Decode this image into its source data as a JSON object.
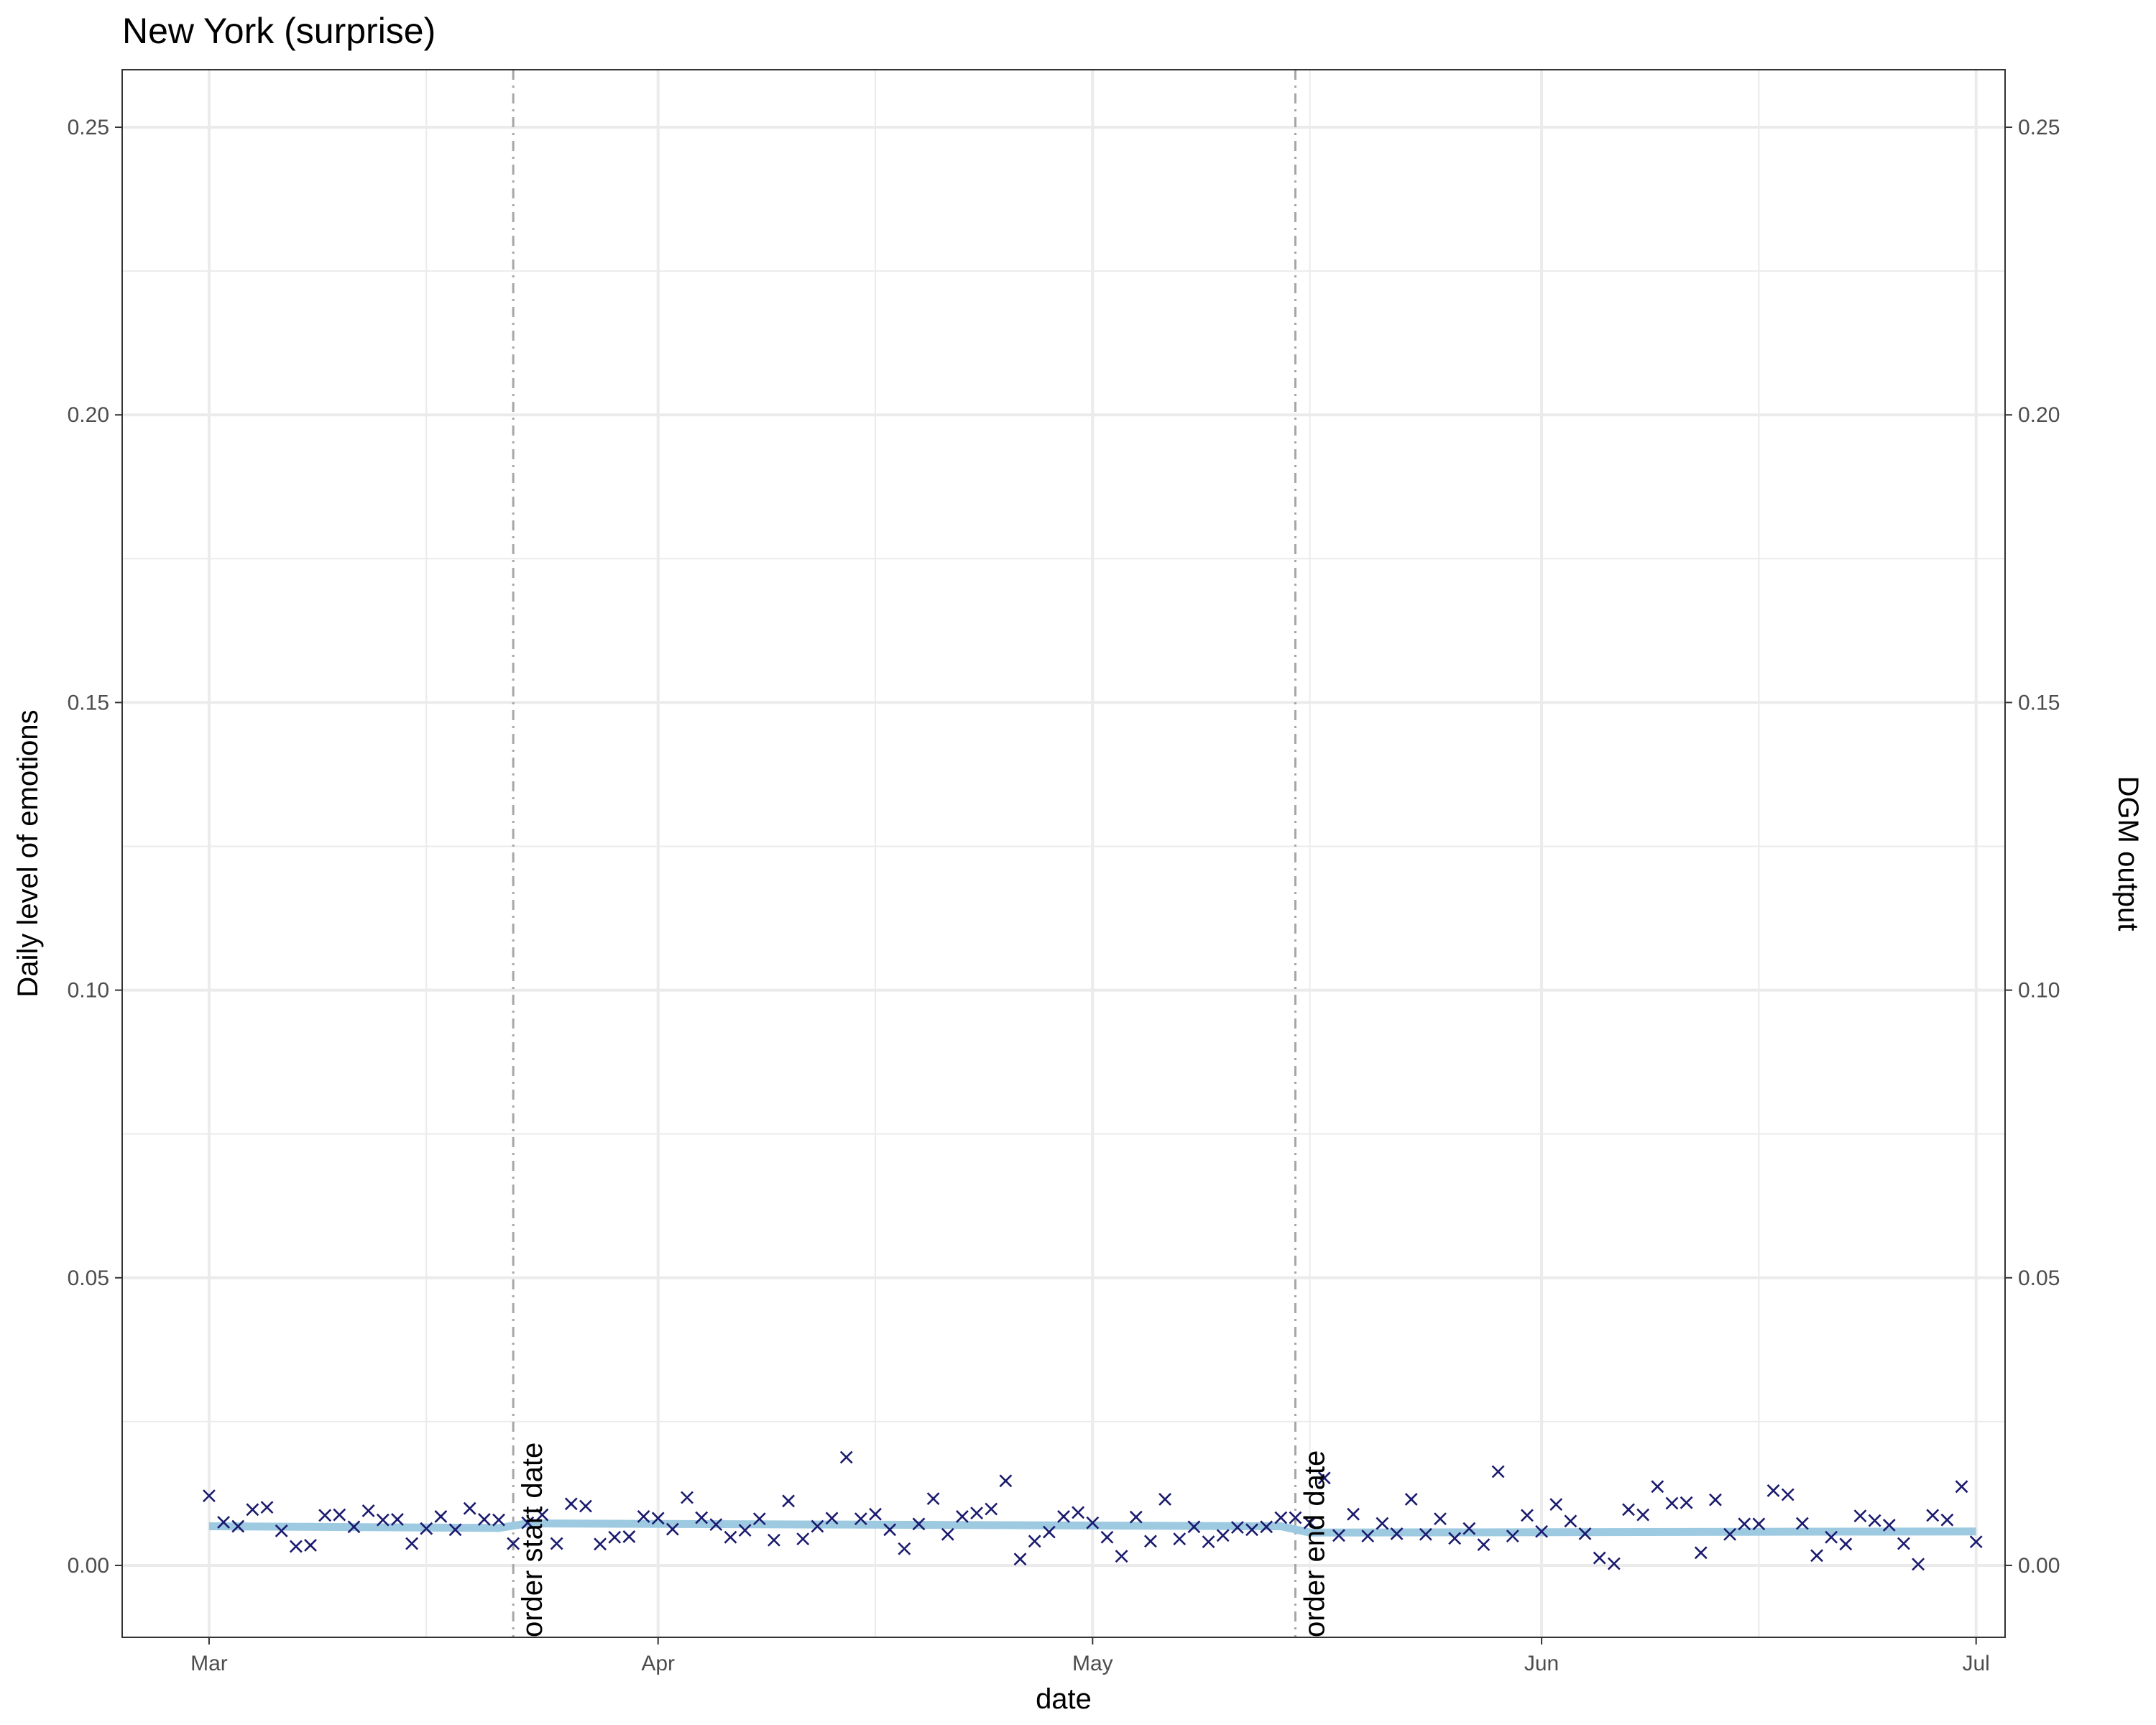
{
  "chart_data": {
    "type": "scatter",
    "title": "New York (surprise)",
    "xlabel": "date",
    "ylabel": "Daily level of emotions",
    "ylabel_right": "DGM output",
    "x_range": [
      "2020-02-24",
      "2020-07-03"
    ],
    "ylim": [
      -0.0125,
      0.26
    ],
    "y_ticks": [
      0.0,
      0.05,
      0.1,
      0.15,
      0.2,
      0.25
    ],
    "y_tick_labels": [
      "0.00",
      "0.05",
      "0.10",
      "0.15",
      "0.20",
      "0.25"
    ],
    "y_minor_ticks": [
      0.025,
      0.075,
      0.125,
      0.175,
      0.225
    ],
    "x_ticks": [
      "2020-03-01",
      "2020-04-01",
      "2020-05-01",
      "2020-06-01",
      "2020-07-01"
    ],
    "x_tick_labels": [
      "Mar",
      "Apr",
      "May",
      "Jun",
      "Jul"
    ],
    "x_minor_ticks": [
      "2020-03-16",
      "2020-04-16",
      "2020-05-16",
      "2020-06-16"
    ],
    "grid": true,
    "colors": {
      "points": "#1a1a6e",
      "fit_line": "#9ecae1",
      "vline": "#a6a6a6",
      "grid": "#ebebeb",
      "panel_border": "#333333"
    },
    "annotations": [
      {
        "date": "2020-03-22",
        "label": "order start date"
      },
      {
        "date": "2020-05-15",
        "label": "order end date"
      }
    ],
    "fit_line": {
      "name": "DGM output",
      "x": [
        "2020-03-01",
        "2020-03-21",
        "2020-03-23",
        "2020-05-14",
        "2020-05-16",
        "2020-07-01"
      ],
      "y": [
        0.0068,
        0.0065,
        0.0073,
        0.0068,
        0.0057,
        0.0059
      ]
    },
    "points": {
      "x": [
        "2020-03-01",
        "2020-03-02",
        "2020-03-03",
        "2020-03-04",
        "2020-03-05",
        "2020-03-06",
        "2020-03-07",
        "2020-03-08",
        "2020-03-09",
        "2020-03-10",
        "2020-03-11",
        "2020-03-12",
        "2020-03-13",
        "2020-03-14",
        "2020-03-15",
        "2020-03-16",
        "2020-03-17",
        "2020-03-18",
        "2020-03-19",
        "2020-03-20",
        "2020-03-21",
        "2020-03-22",
        "2020-03-23",
        "2020-03-24",
        "2020-03-25",
        "2020-03-26",
        "2020-03-27",
        "2020-03-28",
        "2020-03-29",
        "2020-03-30",
        "2020-03-31",
        "2020-04-01",
        "2020-04-02",
        "2020-04-03",
        "2020-04-04",
        "2020-04-05",
        "2020-04-06",
        "2020-04-07",
        "2020-04-08",
        "2020-04-09",
        "2020-04-10",
        "2020-04-11",
        "2020-04-12",
        "2020-04-13",
        "2020-04-14",
        "2020-04-15",
        "2020-04-16",
        "2020-04-17",
        "2020-04-18",
        "2020-04-19",
        "2020-04-20",
        "2020-04-21",
        "2020-04-22",
        "2020-04-23",
        "2020-04-24",
        "2020-04-25",
        "2020-04-26",
        "2020-04-27",
        "2020-04-28",
        "2020-04-29",
        "2020-04-30",
        "2020-05-01",
        "2020-05-02",
        "2020-05-03",
        "2020-05-04",
        "2020-05-05",
        "2020-05-06",
        "2020-05-07",
        "2020-05-08",
        "2020-05-09",
        "2020-05-10",
        "2020-05-11",
        "2020-05-12",
        "2020-05-13",
        "2020-05-14",
        "2020-05-15",
        "2020-05-16",
        "2020-05-17",
        "2020-05-18",
        "2020-05-19",
        "2020-05-20",
        "2020-05-21",
        "2020-05-22",
        "2020-05-23",
        "2020-05-24",
        "2020-05-25",
        "2020-05-26",
        "2020-05-27",
        "2020-05-28",
        "2020-05-29",
        "2020-05-30",
        "2020-05-31",
        "2020-06-01",
        "2020-06-02",
        "2020-06-03",
        "2020-06-04",
        "2020-06-05",
        "2020-06-06",
        "2020-06-07",
        "2020-06-08",
        "2020-06-09",
        "2020-06-10",
        "2020-06-11",
        "2020-06-12",
        "2020-06-13",
        "2020-06-14",
        "2020-06-15",
        "2020-06-16",
        "2020-06-17",
        "2020-06-18",
        "2020-06-19",
        "2020-06-20",
        "2020-06-21",
        "2020-06-22",
        "2020-06-23",
        "2020-06-24",
        "2020-06-25",
        "2020-06-26",
        "2020-06-27",
        "2020-06-28",
        "2020-06-29",
        "2020-06-30",
        "2020-07-01"
      ],
      "y": [
        0.0121,
        0.0075,
        0.0068,
        0.0097,
        0.0101,
        0.006,
        0.0033,
        0.0035,
        0.0087,
        0.0088,
        0.0067,
        0.0095,
        0.0079,
        0.008,
        0.0038,
        0.0064,
        0.0085,
        0.0062,
        0.0099,
        0.008,
        0.0079,
        0.0038,
        0.0074,
        0.0088,
        0.0038,
        0.0107,
        0.0103,
        0.0037,
        0.0049,
        0.005,
        0.0085,
        0.0082,
        0.0063,
        0.0118,
        0.0083,
        0.0071,
        0.0049,
        0.0061,
        0.0081,
        0.0044,
        0.0112,
        0.0046,
        0.0068,
        0.0082,
        0.0188,
        0.0081,
        0.0089,
        0.0062,
        0.0029,
        0.0072,
        0.0116,
        0.0054,
        0.0085,
        0.0091,
        0.0098,
        0.0147,
        0.0011,
        0.0042,
        0.0058,
        0.0085,
        0.0092,
        0.0074,
        0.0049,
        0.0016,
        0.0084,
        0.0042,
        0.0115,
        0.0046,
        0.0067,
        0.0041,
        0.0052,
        0.0066,
        0.0062,
        0.0067,
        0.0083,
        0.0083,
        0.0074,
        0.0152,
        0.0052,
        0.0089,
        0.0051,
        0.0073,
        0.0055,
        0.0115,
        0.0054,
        0.0081,
        0.0047,
        0.0064,
        0.0036,
        0.0163,
        0.0051,
        0.0087,
        0.0059,
        0.0106,
        0.0077,
        0.0055,
        0.0013,
        0.0003,
        0.0097,
        0.0088,
        0.0137,
        0.0108,
        0.0109,
        0.0022,
        0.0114,
        0.0054,
        0.0072,
        0.0072,
        0.013,
        0.0123,
        0.0073,
        0.0017,
        0.0049,
        0.0037,
        0.0086,
        0.0078,
        0.007,
        0.0038,
        0.0002,
        0.0087,
        0.0079,
        0.0137,
        0.0041
      ]
    }
  }
}
